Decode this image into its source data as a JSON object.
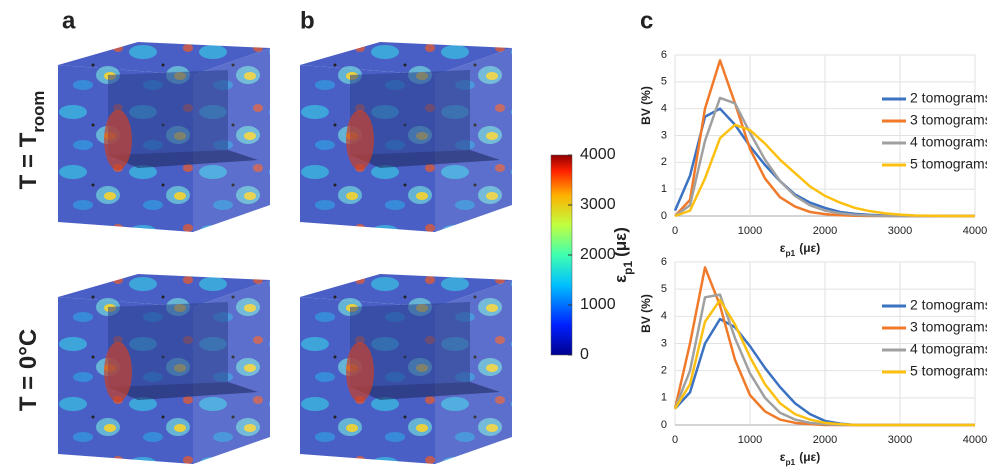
{
  "panel_labels": [
    "a",
    "b",
    "c"
  ],
  "row_labels": [
    {
      "text": "T = T",
      "subscript": "room"
    },
    {
      "text": "T = 0°C"
    }
  ],
  "colorbar": {
    "lim": [
      0,
      4000
    ],
    "ticks": [
      0,
      1000,
      2000,
      3000,
      4000
    ],
    "label": {
      "symbol": "ε",
      "subscript": "p1",
      "unit": "(με)"
    }
  },
  "chart_data": [
    {
      "type": "line",
      "y_label": "BV (%)",
      "x_label": {
        "symbol": "ε",
        "subscript": "p1",
        "unit": "(με)"
      },
      "x": [
        0,
        200,
        400,
        600,
        800,
        1000,
        1200,
        1400,
        1600,
        1800,
        2000,
        2200,
        2400,
        2600,
        2800,
        3000,
        3200,
        3400,
        3600,
        3800,
        4000
      ],
      "xlim": [
        0,
        4000
      ],
      "xticks": [
        0,
        1000,
        2000,
        3000,
        4000
      ],
      "ylim": [
        0,
        6
      ],
      "yticks": [
        0,
        1,
        2,
        3,
        4,
        5,
        6
      ],
      "grid": true,
      "legend": "upper right",
      "series": [
        {
          "name": "2 tomograms",
          "color": "#3b72c2",
          "values": [
            0.2,
            1.5,
            3.7,
            4.0,
            3.4,
            2.6,
            1.9,
            1.3,
            0.8,
            0.5,
            0.3,
            0.15,
            0.08,
            0.04,
            0.02,
            0,
            0,
            0,
            0,
            0,
            0
          ]
        },
        {
          "name": "3 tomograms",
          "color": "#f07a2a",
          "values": [
            0,
            0.6,
            4.0,
            5.8,
            4.2,
            2.5,
            1.4,
            0.7,
            0.35,
            0.15,
            0.07,
            0.03,
            0.01,
            0,
            0,
            0,
            0,
            0,
            0,
            0,
            0
          ]
        },
        {
          "name": "4 tomograms",
          "color": "#a0a0a0",
          "values": [
            0,
            0.4,
            2.8,
            4.4,
            4.2,
            3.1,
            2.1,
            1.3,
            0.75,
            0.4,
            0.2,
            0.1,
            0.04,
            0.02,
            0,
            0,
            0,
            0,
            0,
            0,
            0
          ]
        },
        {
          "name": "5 tomograms",
          "color": "#fcc010",
          "values": [
            0,
            0.2,
            1.4,
            2.9,
            3.4,
            3.2,
            2.7,
            2.1,
            1.6,
            1.1,
            0.75,
            0.5,
            0.3,
            0.18,
            0.1,
            0.05,
            0.02,
            0.01,
            0,
            0,
            0
          ]
        }
      ]
    },
    {
      "type": "line",
      "y_label": "BV (%)",
      "x_label": {
        "symbol": "ε",
        "subscript": "p1",
        "unit": "(με)"
      },
      "x": [
        0,
        200,
        400,
        600,
        800,
        1000,
        1200,
        1400,
        1600,
        1800,
        2000,
        2200,
        2400,
        2600,
        2800,
        3000,
        3200,
        3400,
        3600,
        3800,
        4000
      ],
      "xlim": [
        0,
        4000
      ],
      "xticks": [
        0,
        1000,
        2000,
        3000,
        4000
      ],
      "ylim": [
        0,
        6
      ],
      "yticks": [
        0,
        1,
        2,
        3,
        4,
        5,
        6
      ],
      "grid": true,
      "legend": "upper right",
      "series": [
        {
          "name": "2 tomograms",
          "color": "#3b72c2",
          "values": [
            0.6,
            1.2,
            3.0,
            3.9,
            3.6,
            2.9,
            2.1,
            1.4,
            0.8,
            0.4,
            0.15,
            0.05,
            0,
            0,
            0,
            0,
            0,
            0,
            0,
            0,
            0
          ]
        },
        {
          "name": "3 tomograms",
          "color": "#f07a2a",
          "values": [
            0.6,
            3.0,
            5.8,
            4.4,
            2.4,
            1.1,
            0.5,
            0.2,
            0.08,
            0.03,
            0,
            0,
            0,
            0,
            0,
            0,
            0,
            0,
            0,
            0,
            0
          ]
        },
        {
          "name": "4 tomograms",
          "color": "#a0a0a0",
          "values": [
            0.6,
            2.0,
            4.7,
            4.8,
            3.2,
            1.9,
            1.0,
            0.45,
            0.2,
            0.08,
            0.03,
            0,
            0,
            0,
            0,
            0,
            0,
            0,
            0,
            0,
            0
          ]
        },
        {
          "name": "5 tomograms",
          "color": "#fcc010",
          "values": [
            0.6,
            1.5,
            3.8,
            4.6,
            3.7,
            2.5,
            1.5,
            0.8,
            0.4,
            0.2,
            0.08,
            0.03,
            0,
            0,
            0,
            0,
            0,
            0,
            0,
            0,
            0
          ]
        }
      ]
    }
  ]
}
